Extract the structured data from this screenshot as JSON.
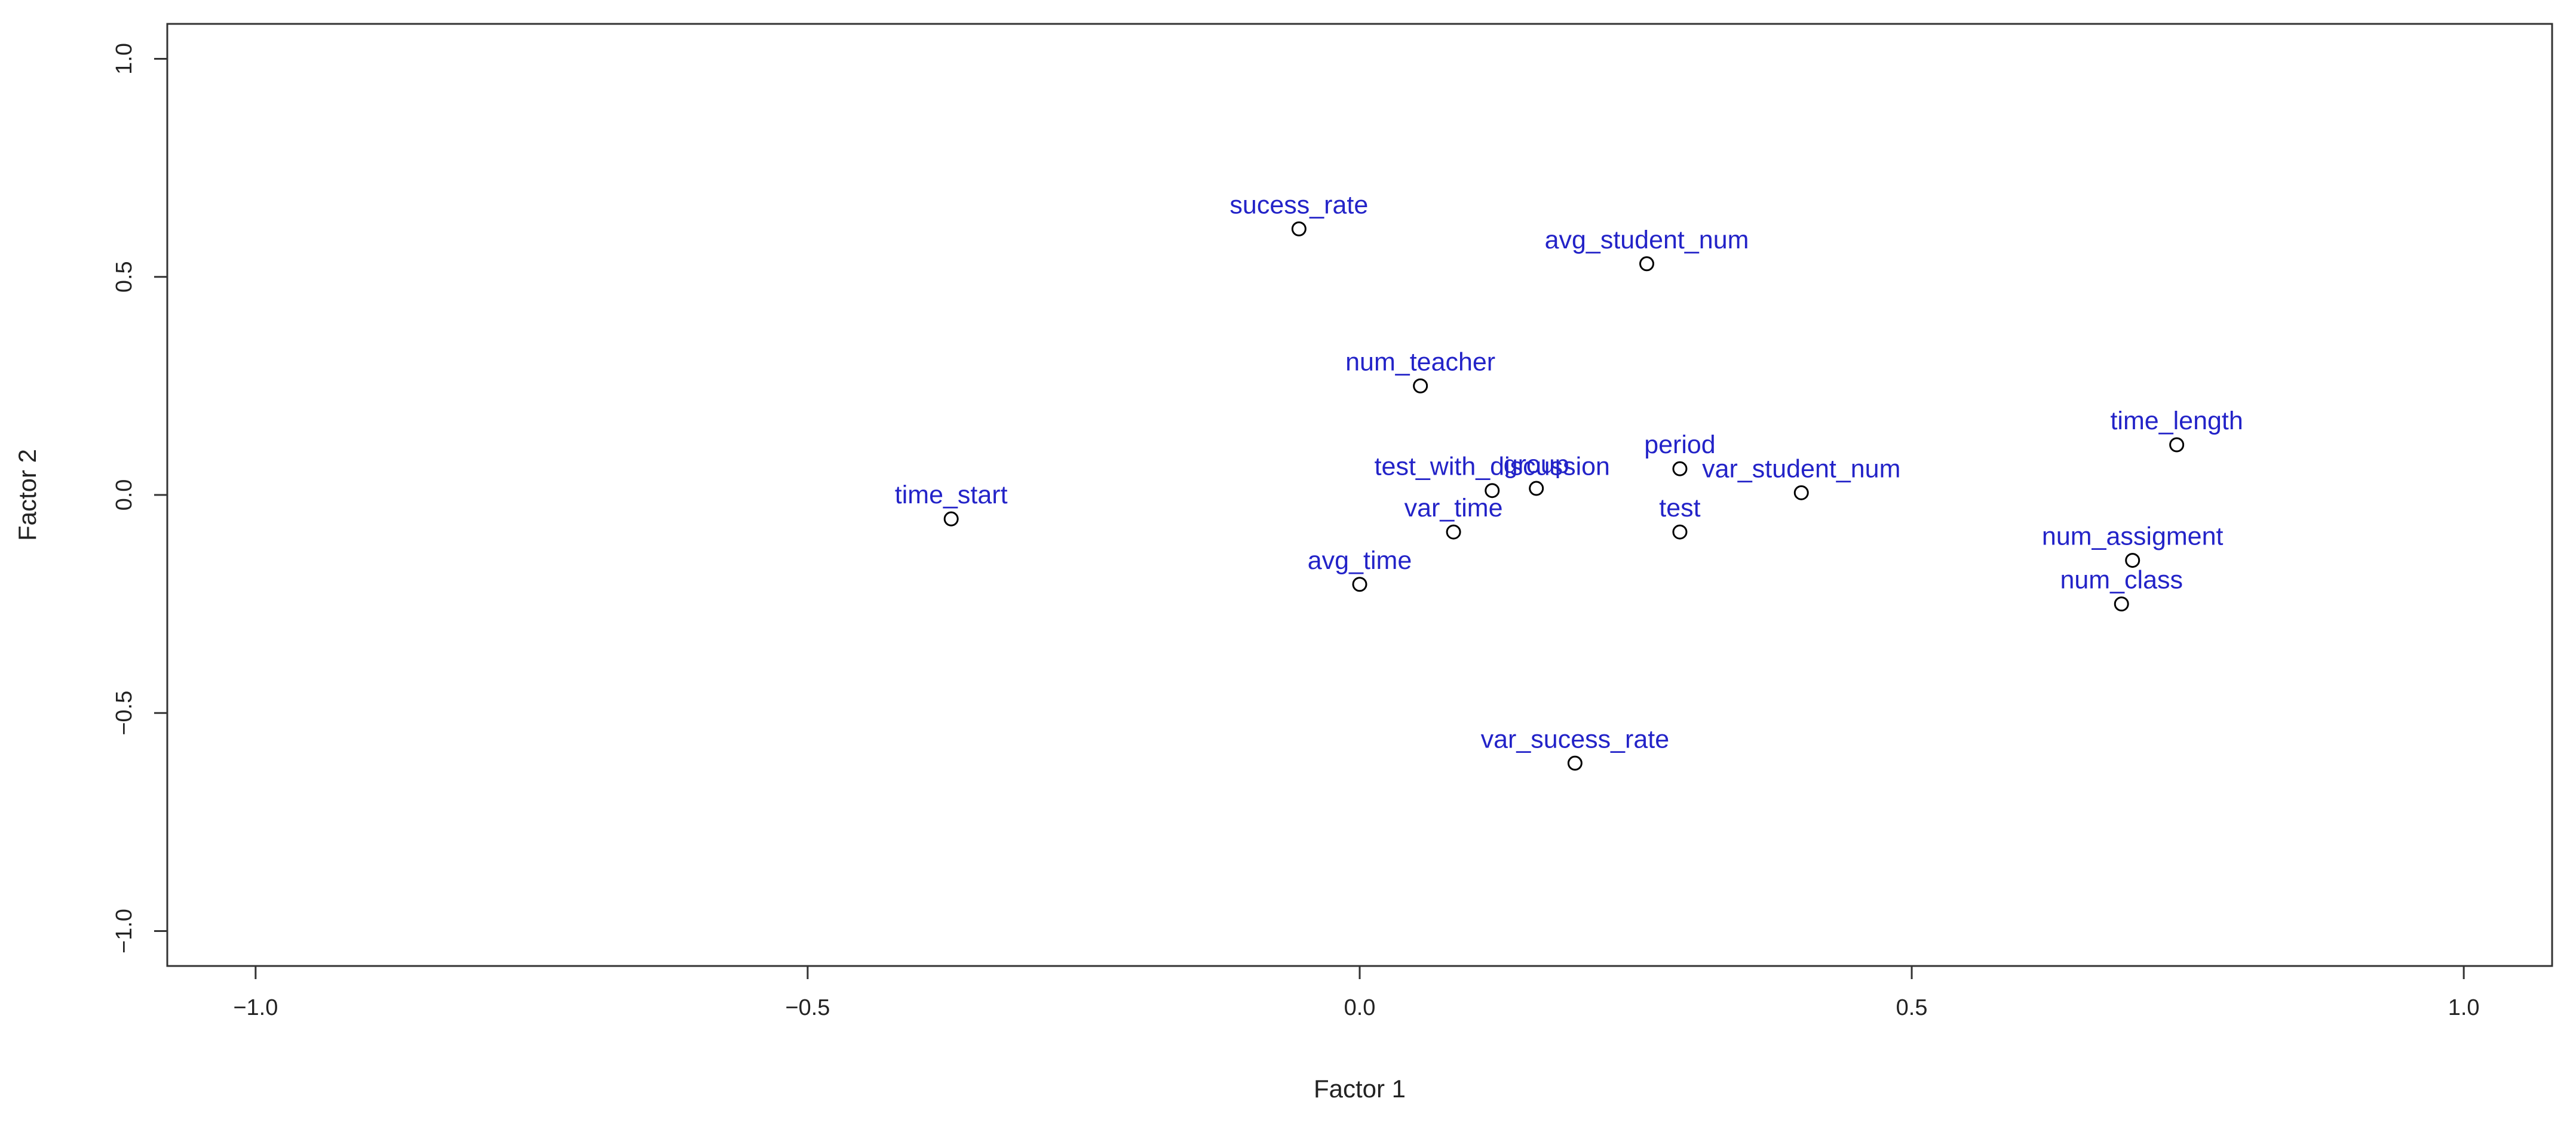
{
  "chart_data": {
    "type": "scatter",
    "xlabel": "Factor 1",
    "ylabel": "Factor 2",
    "xlim": [
      -1.08,
      1.08
    ],
    "ylim": [
      -1.08,
      1.08
    ],
    "x_ticks": [
      -1.0,
      -0.5,
      0.0,
      0.5,
      1.0
    ],
    "y_ticks": [
      -1.0,
      -0.5,
      0.0,
      0.5,
      1.0
    ],
    "x_tick_labels": [
      "−1.0",
      "−0.5",
      "0.0",
      "0.5",
      "1.0"
    ],
    "y_tick_labels": [
      "−1.0",
      "−0.5",
      "0.0",
      "0.5",
      "1.0"
    ],
    "grid": false,
    "label_color": "#2323c8",
    "marker_color": "#000000",
    "points": [
      {
        "label": "sucess_rate",
        "x": -0.055,
        "y": 0.61
      },
      {
        "label": "avg_student_num",
        "x": 0.26,
        "y": 0.53
      },
      {
        "label": "num_teacher",
        "x": 0.055,
        "y": 0.25
      },
      {
        "label": "time_length",
        "x": 0.74,
        "y": 0.115
      },
      {
        "label": "group",
        "x": 0.16,
        "y": 0.015
      },
      {
        "label": "period",
        "x": 0.29,
        "y": 0.06
      },
      {
        "label": "test_with_discussion",
        "x": 0.12,
        "y": 0.01
      },
      {
        "label": "var_student_num",
        "x": 0.4,
        "y": 0.005
      },
      {
        "label": "time_start",
        "x": -0.37,
        "y": -0.055
      },
      {
        "label": "var_time",
        "x": 0.085,
        "y": -0.085
      },
      {
        "label": "test",
        "x": 0.29,
        "y": -0.085
      },
      {
        "label": "num_assigment",
        "x": 0.7,
        "y": -0.15
      },
      {
        "label": "avg_time",
        "x": 0.0,
        "y": -0.205
      },
      {
        "label": "num_class",
        "x": 0.69,
        "y": -0.25
      },
      {
        "label": "var_sucess_rate",
        "x": 0.195,
        "y": -0.615
      }
    ]
  }
}
